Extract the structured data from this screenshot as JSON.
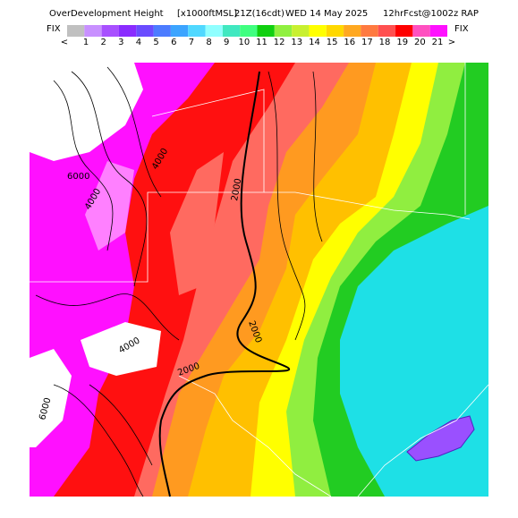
{
  "header": {
    "title": "OverDevelopment Height",
    "units": "[x1000ftMSL]",
    "time": "21Z(16cdt)",
    "date": "WED 14 May 2025",
    "model": "12hrFcst@1002z RAP"
  },
  "colorbar": {
    "left": "FIX",
    "right": "FIX",
    "labels": [
      "<",
      "1",
      "2",
      "3",
      "4",
      "5",
      "6",
      "7",
      "8",
      "9",
      "10",
      "11",
      "12",
      "13",
      "14",
      "15",
      "16",
      "17",
      "18",
      "19",
      "20",
      "21",
      ">"
    ],
    "colors": [
      "#c0c0c0",
      "#c890ff",
      "#a850ff",
      "#8a2cff",
      "#6a4cff",
      "#4c7cff",
      "#3ca4ff",
      "#50d8ff",
      "#90ffff",
      "#40e8c0",
      "#40ff80",
      "#10d010",
      "#90f040",
      "#c8f030",
      "#ffff00",
      "#ffd800",
      "#ffa820",
      "#ff7a40",
      "#ff5050",
      "#ff0000",
      "#ff50c0",
      "#ff10ff"
    ]
  },
  "contours": [
    "6000",
    "4000",
    "4000",
    "2000",
    "2000",
    "4000",
    "2000",
    "6000"
  ]
}
